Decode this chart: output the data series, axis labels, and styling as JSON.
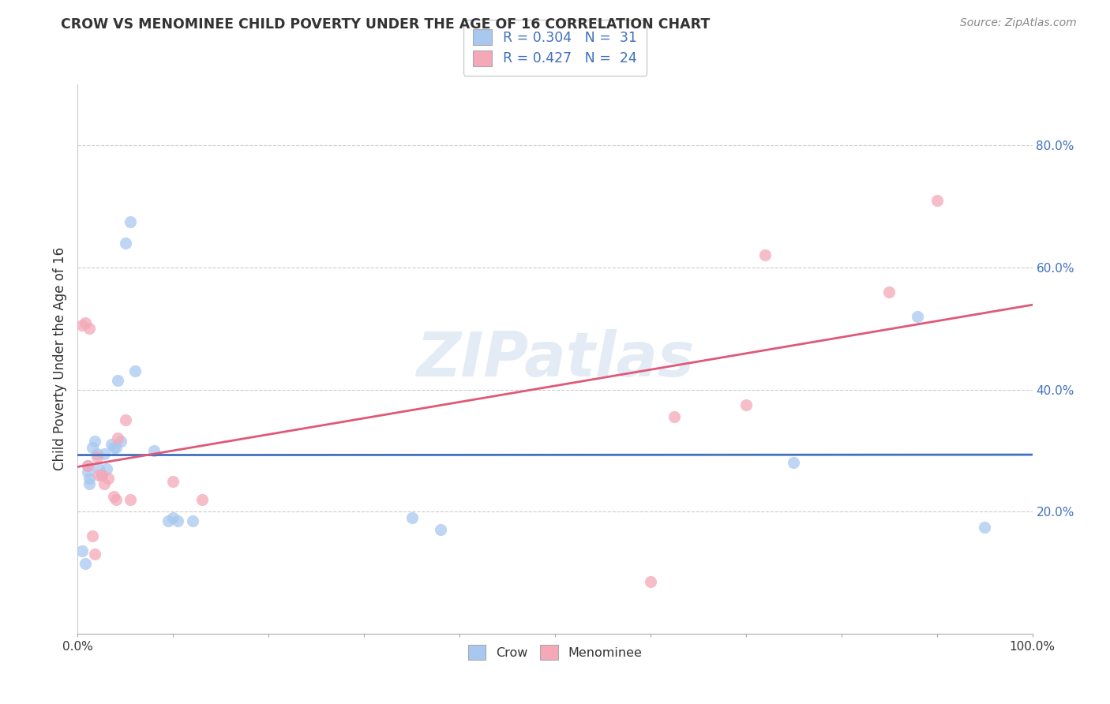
{
  "title": "CROW VS MENOMINEE CHILD POVERTY UNDER THE AGE OF 16 CORRELATION CHART",
  "source": "Source: ZipAtlas.com",
  "ylabel": "Child Poverty Under the Age of 16",
  "xlim": [
    0,
    1.0
  ],
  "ylim": [
    0.0,
    0.9
  ],
  "xtick_vals": [
    0.0,
    0.1,
    0.2,
    0.3,
    0.4,
    0.5,
    0.6,
    0.7,
    0.8,
    0.9,
    1.0
  ],
  "xtick_labels_sparse": {
    "0": "0.0%",
    "10": "100.0%"
  },
  "ytick_vals": [
    0.2,
    0.4,
    0.6,
    0.8
  ],
  "ytick_labels": [
    "20.0%",
    "40.0%",
    "60.0%",
    "80.0%"
  ],
  "crow_color": "#A8C8F0",
  "menominee_color": "#F4A8B8",
  "crow_line_color": "#4070C0",
  "menominee_line_color": "#E05878",
  "legend_text_color": "#4070C0",
  "crow_x": [
    0.005,
    0.008,
    0.01,
    0.01,
    0.012,
    0.012,
    0.015,
    0.018,
    0.02,
    0.022,
    0.025,
    0.028,
    0.03,
    0.035,
    0.038,
    0.04,
    0.042,
    0.045,
    0.05,
    0.055,
    0.06,
    0.08,
    0.095,
    0.1,
    0.105,
    0.12,
    0.35,
    0.38,
    0.75,
    0.88,
    0.95
  ],
  "crow_y": [
    0.135,
    0.115,
    0.275,
    0.265,
    0.255,
    0.245,
    0.305,
    0.315,
    0.295,
    0.27,
    0.26,
    0.295,
    0.27,
    0.31,
    0.305,
    0.305,
    0.415,
    0.315,
    0.64,
    0.675,
    0.43,
    0.3,
    0.185,
    0.19,
    0.185,
    0.185,
    0.19,
    0.17,
    0.28,
    0.52,
    0.175
  ],
  "menominee_x": [
    0.005,
    0.008,
    0.01,
    0.012,
    0.015,
    0.018,
    0.02,
    0.022,
    0.025,
    0.028,
    0.032,
    0.038,
    0.04,
    0.042,
    0.05,
    0.055,
    0.1,
    0.13,
    0.6,
    0.625,
    0.7,
    0.72,
    0.85,
    0.9
  ],
  "menominee_y": [
    0.505,
    0.51,
    0.275,
    0.5,
    0.16,
    0.13,
    0.29,
    0.26,
    0.26,
    0.245,
    0.255,
    0.225,
    0.22,
    0.32,
    0.35,
    0.22,
    0.25,
    0.22,
    0.085,
    0.355,
    0.375,
    0.62,
    0.56,
    0.71
  ],
  "watermark_text": "ZIPatlas",
  "background_color": "#FFFFFF",
  "grid_color": "#CCCCCC",
  "grid_linestyle": "--",
  "scatter_size": 120,
  "scatter_alpha": 0.75
}
